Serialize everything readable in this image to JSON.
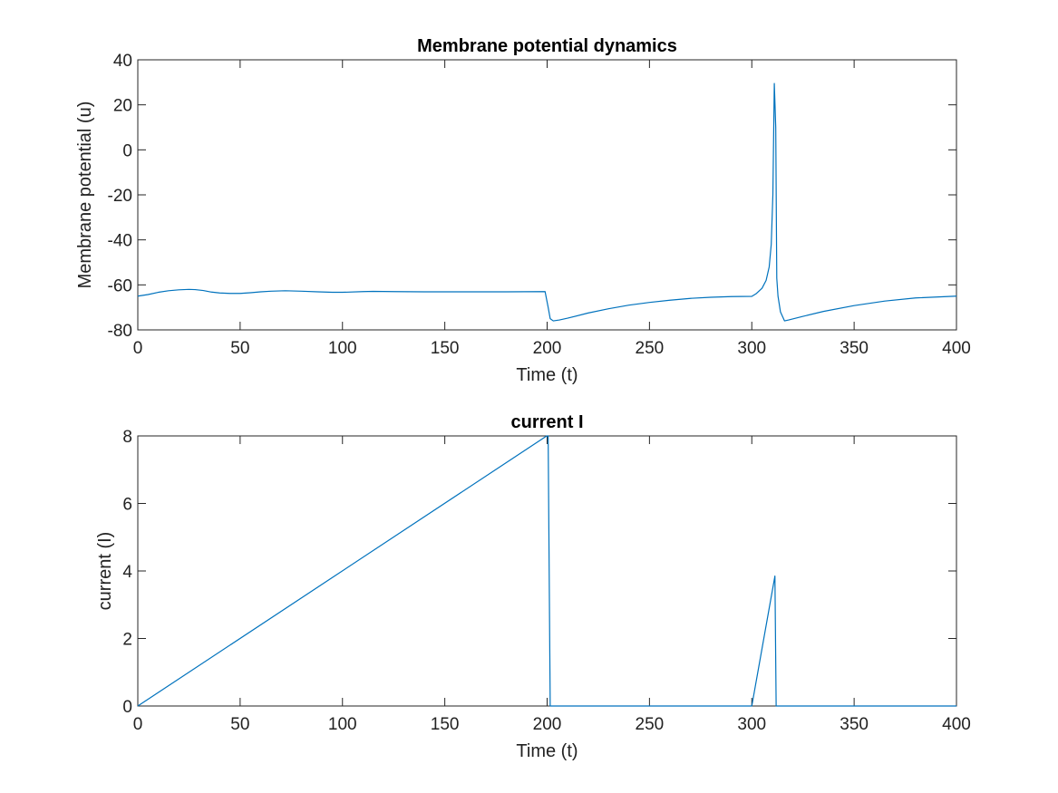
{
  "chart_data": [
    {
      "type": "line",
      "title": "Membrane potential dynamics",
      "xlabel": "Time (t)",
      "ylabel": "Membrane potential (u)",
      "xlim": [
        0,
        400
      ],
      "ylim": [
        -80,
        40
      ],
      "xticks": [
        0,
        50,
        100,
        150,
        200,
        250,
        300,
        350,
        400
      ],
      "yticks": [
        -80,
        -60,
        -40,
        -20,
        0,
        20,
        40
      ],
      "grid": false,
      "series": [
        {
          "color": "#0072BD",
          "x": [
            0,
            5,
            10,
            15,
            20,
            25,
            28,
            32,
            36,
            40,
            45,
            50,
            55,
            60,
            65,
            72,
            80,
            88,
            95,
            100,
            110,
            115,
            125,
            140,
            160,
            180,
            199,
            200.5,
            201.5,
            203,
            206,
            210,
            220,
            230,
            240,
            250,
            260,
            270,
            280,
            290,
            300,
            302,
            305,
            307,
            308.5,
            309.5,
            310.3,
            311,
            311.7,
            312.2,
            312.8,
            314,
            316,
            318,
            325,
            335,
            350,
            365,
            380,
            400
          ],
          "y": [
            -65,
            -64.3,
            -63.3,
            -62.6,
            -62.2,
            -62,
            -62.1,
            -62.5,
            -63.2,
            -63.6,
            -63.8,
            -63.8,
            -63.5,
            -63.1,
            -62.8,
            -62.6,
            -62.8,
            -63.1,
            -63.3,
            -63.3,
            -63.0,
            -62.9,
            -63.0,
            -63.1,
            -63.1,
            -63.1,
            -63.0,
            -70,
            -75,
            -76,
            -75.6,
            -74.8,
            -72.5,
            -70.6,
            -69.0,
            -67.8,
            -66.8,
            -66.0,
            -65.5,
            -65.2,
            -65.1,
            -64.0,
            -61.5,
            -58.0,
            -52.0,
            -42.0,
            -20.0,
            29.5,
            10.0,
            -57.0,
            -65.0,
            -72.0,
            -76.0,
            -75.6,
            -74.0,
            -71.8,
            -69.2,
            -67.2,
            -65.8,
            -65.0
          ]
        }
      ]
    },
    {
      "type": "line",
      "title": "current I",
      "xlabel": "Time (t)",
      "ylabel": "current (I)",
      "xlim": [
        0,
        400
      ],
      "ylim": [
        0,
        8
      ],
      "xticks": [
        0,
        50,
        100,
        150,
        200,
        250,
        300,
        350,
        400
      ],
      "yticks": [
        0,
        2,
        4,
        6,
        8
      ],
      "grid": false,
      "series": [
        {
          "color": "#0072BD",
          "x": [
            0,
            199.8,
            200.5,
            201.5,
            300,
            311.3,
            311.9,
            400
          ],
          "y": [
            0,
            8,
            8,
            0,
            0,
            3.85,
            0,
            0
          ]
        }
      ]
    }
  ]
}
